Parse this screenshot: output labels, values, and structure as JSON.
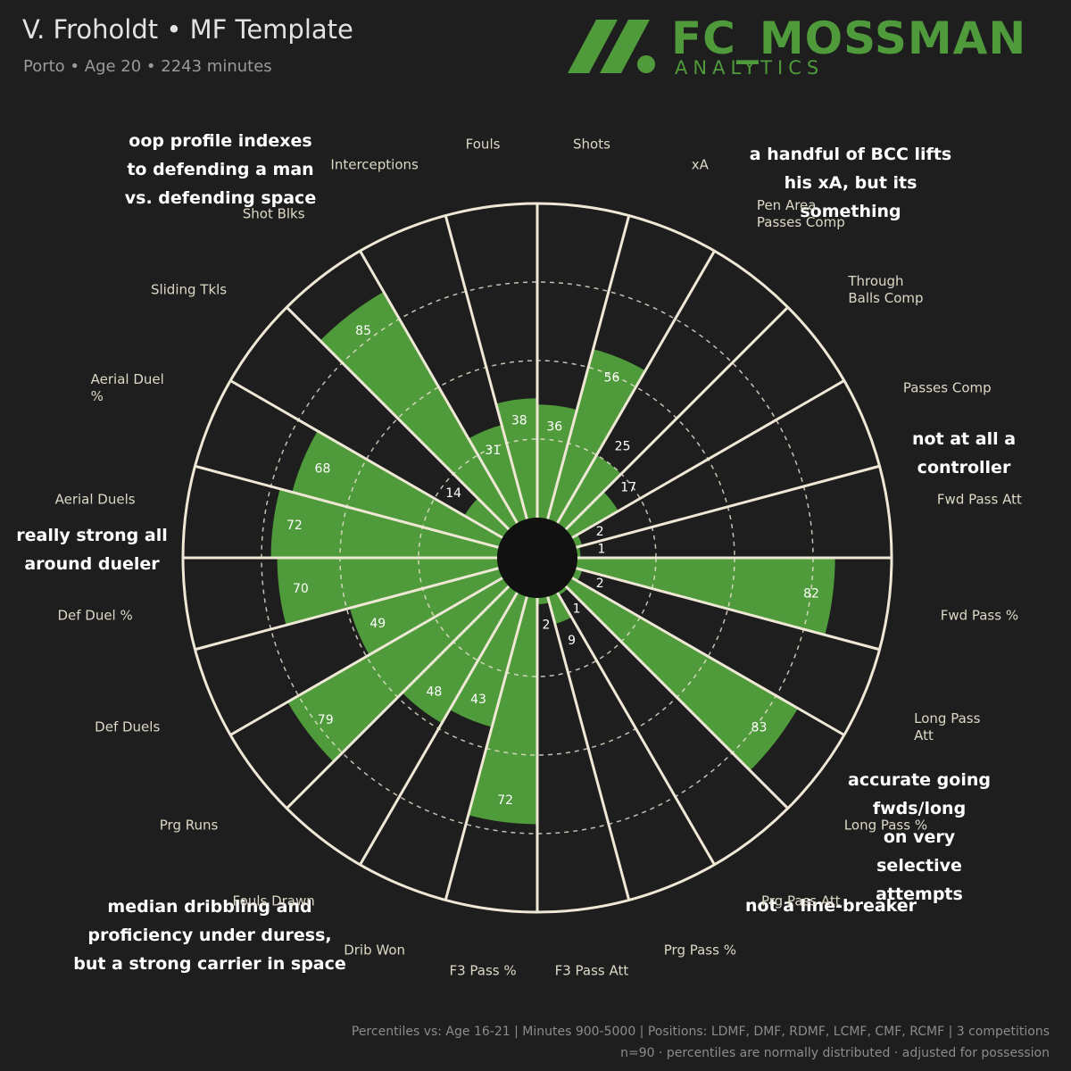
{
  "header": {
    "title": "V. Froholdt • MF Template",
    "subtitle": "Porto • Age 20 • 2243 minutes",
    "logo_main": "FC_MOSSMAN",
    "logo_sub": "ANALYTICS"
  },
  "chart_data": {
    "type": "polar",
    "categories": [
      "Shots",
      "xA",
      "Pen Area\nPasses Comp",
      "Through\nBalls Comp",
      "Passes Comp",
      "Fwd Pass Att",
      "Fwd Pass %",
      "Long Pass\nAtt",
      "Long Pass %",
      "Prg Pass Att",
      "Prg Pass %",
      "F3 Pass Att",
      "F3 Pass %",
      "Drib Won",
      "Fouls Drawn",
      "Prg Runs",
      "Def Duels",
      "Def Duel %",
      "Aerial Duels",
      "Aerial Duel\n%",
      "Sliding Tkls",
      "Shot Blks",
      "Interceptions",
      "Fouls"
    ],
    "values": [
      36,
      56,
      25,
      17,
      2,
      1,
      82,
      2,
      83,
      1,
      9,
      2,
      72,
      43,
      48,
      79,
      49,
      70,
      72,
      68,
      14,
      85,
      31,
      38
    ],
    "color": "#4f9a3a",
    "rlim": [
      0,
      100
    ],
    "rticks": [
      25,
      50,
      75
    ],
    "annotations": [
      "oop profile indexes\nto defending a man\nvs. defending space",
      "a handful of BCC lifts\nhis xA, but its something",
      "not at all a\ncontroller",
      "really strong all\naround dueler",
      "accurate going fwds/long\non very selective attempts",
      "not a line-breaker",
      "median dribbling and\nproficiency under duress,\nbut a strong carrier in space"
    ]
  },
  "footer": {
    "line1": "Percentiles vs: Age 16-21 | Minutes 900-5000 | Positions: LDMF, DMF, RDMF, LCMF, CMF, RCMF | 3 competitions",
    "line2": "n=90 · percentiles are normally distributed · adjusted for possession"
  }
}
